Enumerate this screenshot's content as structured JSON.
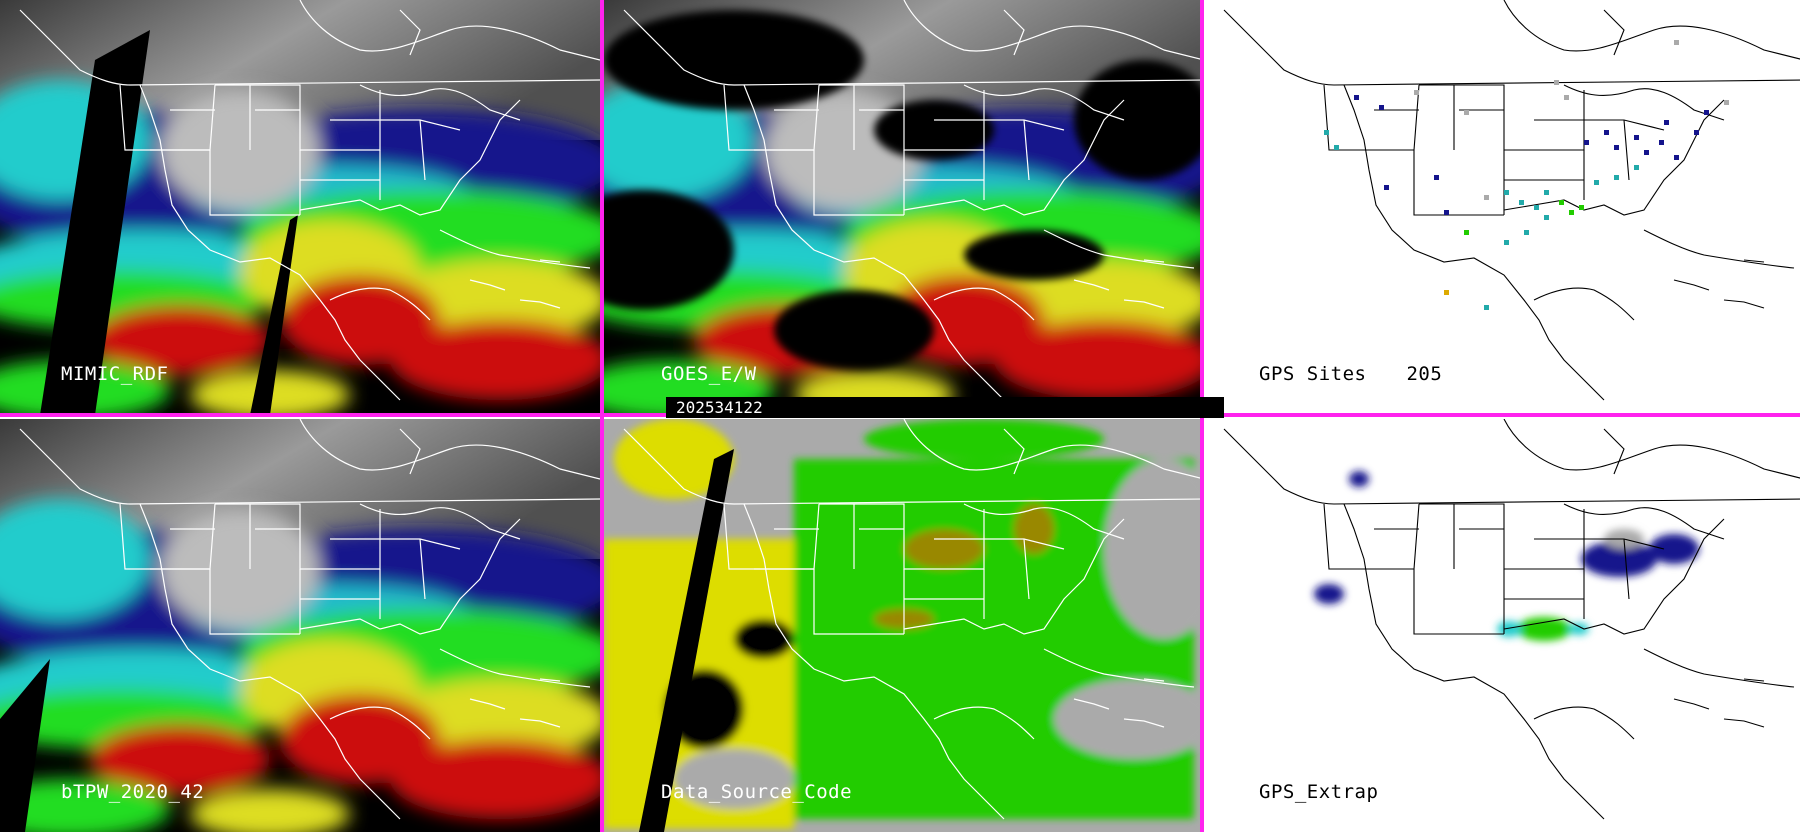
{
  "panels": {
    "mimic": {
      "label": "MIMIC_RDF"
    },
    "goes": {
      "label": "GOES_E/W"
    },
    "gps_sites": {
      "label": "GPS Sites",
      "count": "205"
    },
    "btpw": {
      "label": "bTPW_2020_42"
    },
    "data_source": {
      "label": "Data_Source_Code"
    },
    "gps_extrap": {
      "label": "GPS_Extrap"
    }
  },
  "timestamp": "202534122",
  "colors": {
    "divider": "#ff22ee",
    "background_dark": "#000000",
    "background_light": "#ffffff",
    "tpw_low": "#1a1aa0",
    "tpw_mid_low": "#22dddd",
    "tpw_mid": "#22dd22",
    "tpw_mid_high": "#dddd22",
    "tpw_high": "#cc1111",
    "source_gray": "#aaaaaa",
    "source_green": "#22cc00",
    "source_yellow": "#dddd00",
    "source_olive": "#998800"
  }
}
